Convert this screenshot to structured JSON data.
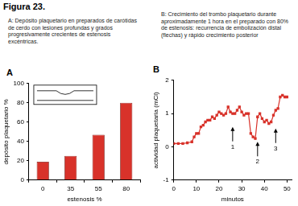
{
  "title": "Figura 23.",
  "chart_data": [
    {
      "panel": "A",
      "caption": "A: Depósito plaquetario en preparados de carótidas de cerdo con lesiones profundas y grados progresivamente crecientes de estenosis excéntricas.",
      "type": "bar",
      "categories": [
        "0",
        "35",
        "55",
        "80"
      ],
      "values": [
        19,
        25,
        47,
        80
      ],
      "color": "#d8322a",
      "xlabel": "estenosis %",
      "ylabel": "depósito plaquetario %",
      "ylim": [
        0,
        100
      ],
      "yticks": [
        0,
        20,
        40,
        60,
        80,
        100
      ],
      "grid": false
    },
    {
      "panel": "B",
      "caption": "B: Crecimiento del trombo plaquetario durante aproximadamente 1 hora en el preparado con 80% de estenosis: recurrencia de embolización distal (flechas) y rápido crecimiento posterior",
      "type": "line",
      "x": [
        0,
        2,
        4,
        6,
        8,
        9,
        10,
        11,
        12,
        13,
        14,
        15,
        16,
        17,
        18,
        19,
        20,
        21,
        22,
        23,
        24,
        25,
        26,
        27,
        28,
        29,
        30,
        31,
        32,
        33,
        34,
        35,
        36,
        37,
        38,
        39,
        40,
        41,
        42,
        43,
        44,
        45,
        46,
        47,
        48,
        49,
        50
      ],
      "values": [
        0.1,
        0.1,
        0.1,
        0.12,
        0.15,
        0.3,
        0.4,
        0.4,
        0.6,
        0.65,
        0.75,
        0.8,
        0.8,
        0.9,
        0.85,
        0.95,
        1.05,
        1.0,
        0.95,
        1.0,
        1.2,
        1.05,
        1.0,
        1.0,
        1.1,
        1.2,
        1.05,
        0.95,
        1.0,
        1.0,
        0.4,
        0.3,
        0.25,
        0.9,
        1.0,
        0.85,
        0.75,
        0.8,
        0.7,
        0.75,
        0.95,
        1.1,
        1.15,
        1.5,
        1.55,
        1.5,
        1.5
      ],
      "color": "#d8322a",
      "marker": "square",
      "xlabel": "minutos",
      "ylabel": "actividad plaquetaria (mCi)",
      "xlim": [
        0,
        52
      ],
      "xticks": [
        0,
        10,
        20,
        30,
        40,
        50
      ],
      "ylim": [
        -1,
        2
      ],
      "yticks": [
        -1,
        0,
        1,
        2
      ],
      "grid": false,
      "annotations": [
        {
          "x": 26,
          "y": 0.6,
          "label": "1"
        },
        {
          "x": 37,
          "y": 0.15,
          "label": "2"
        },
        {
          "x": 45,
          "y": 0.55,
          "label": "3"
        }
      ]
    }
  ]
}
